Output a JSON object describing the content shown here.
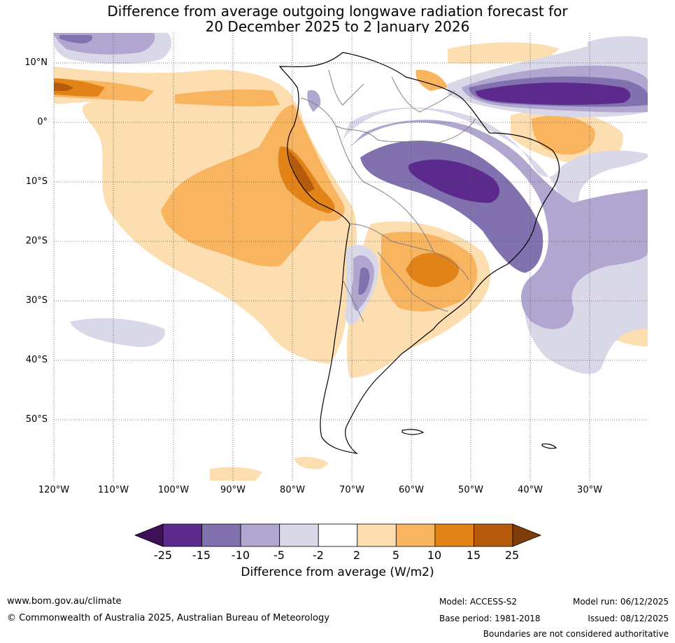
{
  "title_line1": "Difference from average outgoing longwave radiation forecast for",
  "title_line2": "20 December 2025 to 2 January 2026",
  "lat_labels": [
    "10°N",
    "0°",
    "10°S",
    "20°S",
    "30°S",
    "40°S",
    "50°S"
  ],
  "lon_labels": [
    "120°W",
    "110°W",
    "100°W",
    "90°W",
    "80°W",
    "70°W",
    "60°W",
    "50°W",
    "40°W",
    "30°W"
  ],
  "colorbar": {
    "ticks": [
      "-25",
      "-15",
      "-10",
      "-5",
      "-2",
      "2",
      "5",
      "10",
      "15",
      "25"
    ],
    "colors": [
      "#3f0f58",
      "#5b2a8c",
      "#8171ae",
      "#b0a6cf",
      "#d9d8e9",
      "#ffffff",
      "#fddeb0",
      "#f9b460",
      "#e28317",
      "#b65a0b",
      "#7e3c08"
    ],
    "label": "Difference from average (W/m2)"
  },
  "footer": {
    "website": "www.bom.gov.au/climate",
    "copyright": "© Commonwealth of Australia 2025, Australian Bureau of Meteorology",
    "model": "Model: ACCESS-S2",
    "base_period": "Base period: 1981-2018",
    "model_run": "Model run: 06/12/2025",
    "issued": "Issued: 08/12/2025",
    "disclaimer": "Boundaries are not considered authoritative"
  }
}
